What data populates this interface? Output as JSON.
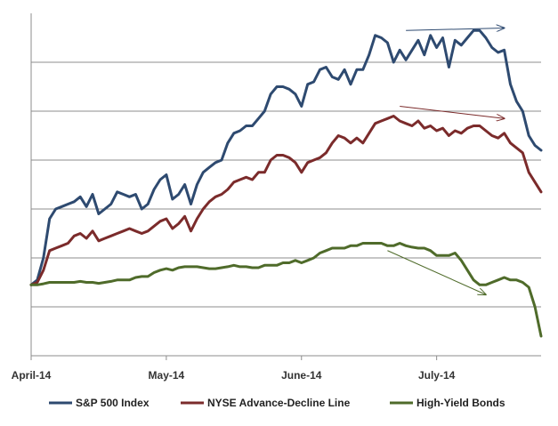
{
  "chart_data": {
    "type": "line",
    "title": "",
    "xlabel": "",
    "ylabel": "",
    "x_tick_labels": [
      "April-14",
      "May-14",
      "June-14",
      "July-14"
    ],
    "x_tick_positions": [
      0,
      22,
      44,
      66
    ],
    "y_axis_labels_shown": false,
    "gridlines": "horizontal",
    "legend_position": "bottom",
    "ylim": [
      0,
      7
    ],
    "series": [
      {
        "name": "S&P 500 Index",
        "color": "#2E4A70",
        "x": [
          0,
          1,
          2,
          3,
          4,
          5,
          6,
          7,
          8,
          9,
          10,
          11,
          12,
          13,
          14,
          15,
          16,
          17,
          18,
          19,
          20,
          21,
          22,
          23,
          24,
          25,
          26,
          27,
          28,
          29,
          30,
          31,
          32,
          33,
          34,
          35,
          36,
          37,
          38,
          39,
          40,
          41,
          42,
          43,
          44,
          45,
          46,
          47,
          48,
          49,
          50,
          51,
          52,
          53,
          54,
          55,
          56,
          57,
          58,
          59,
          60,
          61,
          62,
          63,
          64,
          65,
          66,
          67,
          68,
          69,
          70,
          71,
          72,
          73,
          74,
          75,
          76,
          77,
          78,
          79,
          80,
          81,
          82,
          83
        ],
        "values": [
          1.45,
          1.55,
          2.0,
          2.8,
          3.0,
          3.05,
          3.1,
          3.15,
          3.25,
          3.05,
          3.3,
          2.9,
          3.0,
          3.1,
          3.35,
          3.3,
          3.25,
          3.3,
          3.0,
          3.1,
          3.4,
          3.6,
          3.7,
          3.2,
          3.3,
          3.5,
          3.1,
          3.5,
          3.75,
          3.85,
          3.95,
          4.0,
          4.35,
          4.55,
          4.6,
          4.7,
          4.7,
          4.85,
          5.0,
          5.35,
          5.5,
          5.5,
          5.45,
          5.35,
          5.1,
          5.55,
          5.6,
          5.85,
          5.9,
          5.7,
          5.65,
          5.85,
          5.55,
          5.85,
          5.85,
          6.15,
          6.55,
          6.5,
          6.4,
          6.0,
          6.25,
          6.05,
          6.25,
          6.45,
          6.15,
          6.55,
          6.3,
          6.5,
          5.9,
          6.45,
          6.35,
          6.5,
          6.65,
          6.65,
          6.5,
          6.3,
          6.2,
          6.25,
          5.55,
          5.2,
          5.0,
          4.5,
          4.3,
          4.2
        ],
        "annotation_arrow": {
          "from_x": 61,
          "from_y": 6.65,
          "to_x": 77,
          "to_y": 6.7
        }
      },
      {
        "name": "NYSE Advance-Decline Line",
        "color": "#7B2B2B",
        "x": [
          0,
          1,
          2,
          3,
          4,
          5,
          6,
          7,
          8,
          9,
          10,
          11,
          12,
          13,
          14,
          15,
          16,
          17,
          18,
          19,
          20,
          21,
          22,
          23,
          24,
          25,
          26,
          27,
          28,
          29,
          30,
          31,
          32,
          33,
          34,
          35,
          36,
          37,
          38,
          39,
          40,
          41,
          42,
          43,
          44,
          45,
          46,
          47,
          48,
          49,
          50,
          51,
          52,
          53,
          54,
          55,
          56,
          57,
          58,
          59,
          60,
          61,
          62,
          63,
          64,
          65,
          66,
          67,
          68,
          69,
          70,
          71,
          72,
          73,
          74,
          75,
          76,
          77,
          78,
          79,
          80,
          81,
          82,
          83
        ],
        "values": [
          1.45,
          1.5,
          1.75,
          2.15,
          2.2,
          2.25,
          2.3,
          2.45,
          2.5,
          2.4,
          2.55,
          2.35,
          2.4,
          2.45,
          2.5,
          2.55,
          2.6,
          2.55,
          2.5,
          2.55,
          2.65,
          2.75,
          2.8,
          2.6,
          2.7,
          2.85,
          2.55,
          2.8,
          3.0,
          3.15,
          3.25,
          3.3,
          3.4,
          3.55,
          3.6,
          3.65,
          3.6,
          3.75,
          3.75,
          4.0,
          4.1,
          4.1,
          4.05,
          3.95,
          3.75,
          3.95,
          4.0,
          4.05,
          4.15,
          4.35,
          4.5,
          4.45,
          4.35,
          4.45,
          4.35,
          4.55,
          4.75,
          4.8,
          4.85,
          4.9,
          4.8,
          4.75,
          4.7,
          4.8,
          4.65,
          4.7,
          4.6,
          4.65,
          4.5,
          4.6,
          4.55,
          4.65,
          4.7,
          4.7,
          4.6,
          4.5,
          4.45,
          4.55,
          4.35,
          4.25,
          4.15,
          3.75,
          3.55,
          3.35
        ],
        "annotation_arrow": {
          "from_x": 60,
          "from_y": 5.1,
          "to_x": 77,
          "to_y": 4.85
        }
      },
      {
        "name": "High-Yield Bonds",
        "color": "#4F6B2A",
        "x": [
          0,
          1,
          2,
          3,
          4,
          5,
          6,
          7,
          8,
          9,
          10,
          11,
          12,
          13,
          14,
          15,
          16,
          17,
          18,
          19,
          20,
          21,
          22,
          23,
          24,
          25,
          26,
          27,
          28,
          29,
          30,
          31,
          32,
          33,
          34,
          35,
          36,
          37,
          38,
          39,
          40,
          41,
          42,
          43,
          44,
          45,
          46,
          47,
          48,
          49,
          50,
          51,
          52,
          53,
          54,
          55,
          56,
          57,
          58,
          59,
          60,
          61,
          62,
          63,
          64,
          65,
          66,
          67,
          68,
          69,
          70,
          71,
          72,
          73,
          74,
          75,
          76,
          77,
          78,
          79,
          80,
          81,
          82,
          83
        ],
        "values": [
          1.45,
          1.45,
          1.47,
          1.5,
          1.5,
          1.5,
          1.5,
          1.5,
          1.52,
          1.5,
          1.5,
          1.48,
          1.5,
          1.52,
          1.55,
          1.55,
          1.55,
          1.6,
          1.62,
          1.62,
          1.7,
          1.75,
          1.78,
          1.75,
          1.8,
          1.82,
          1.82,
          1.82,
          1.8,
          1.78,
          1.78,
          1.8,
          1.82,
          1.85,
          1.82,
          1.82,
          1.8,
          1.8,
          1.85,
          1.85,
          1.85,
          1.9,
          1.9,
          1.95,
          1.9,
          1.95,
          2.0,
          2.1,
          2.15,
          2.2,
          2.2,
          2.2,
          2.25,
          2.25,
          2.3,
          2.3,
          2.3,
          2.3,
          2.25,
          2.25,
          2.3,
          2.25,
          2.22,
          2.2,
          2.2,
          2.15,
          2.05,
          2.05,
          2.05,
          2.1,
          1.95,
          1.75,
          1.55,
          1.45,
          1.45,
          1.5,
          1.55,
          1.6,
          1.55,
          1.55,
          1.5,
          1.4,
          1.0,
          0.4
        ],
        "annotation_arrow": {
          "from_x": 58,
          "from_y": 2.15,
          "to_x": 74,
          "to_y": 1.25
        }
      }
    ]
  }
}
